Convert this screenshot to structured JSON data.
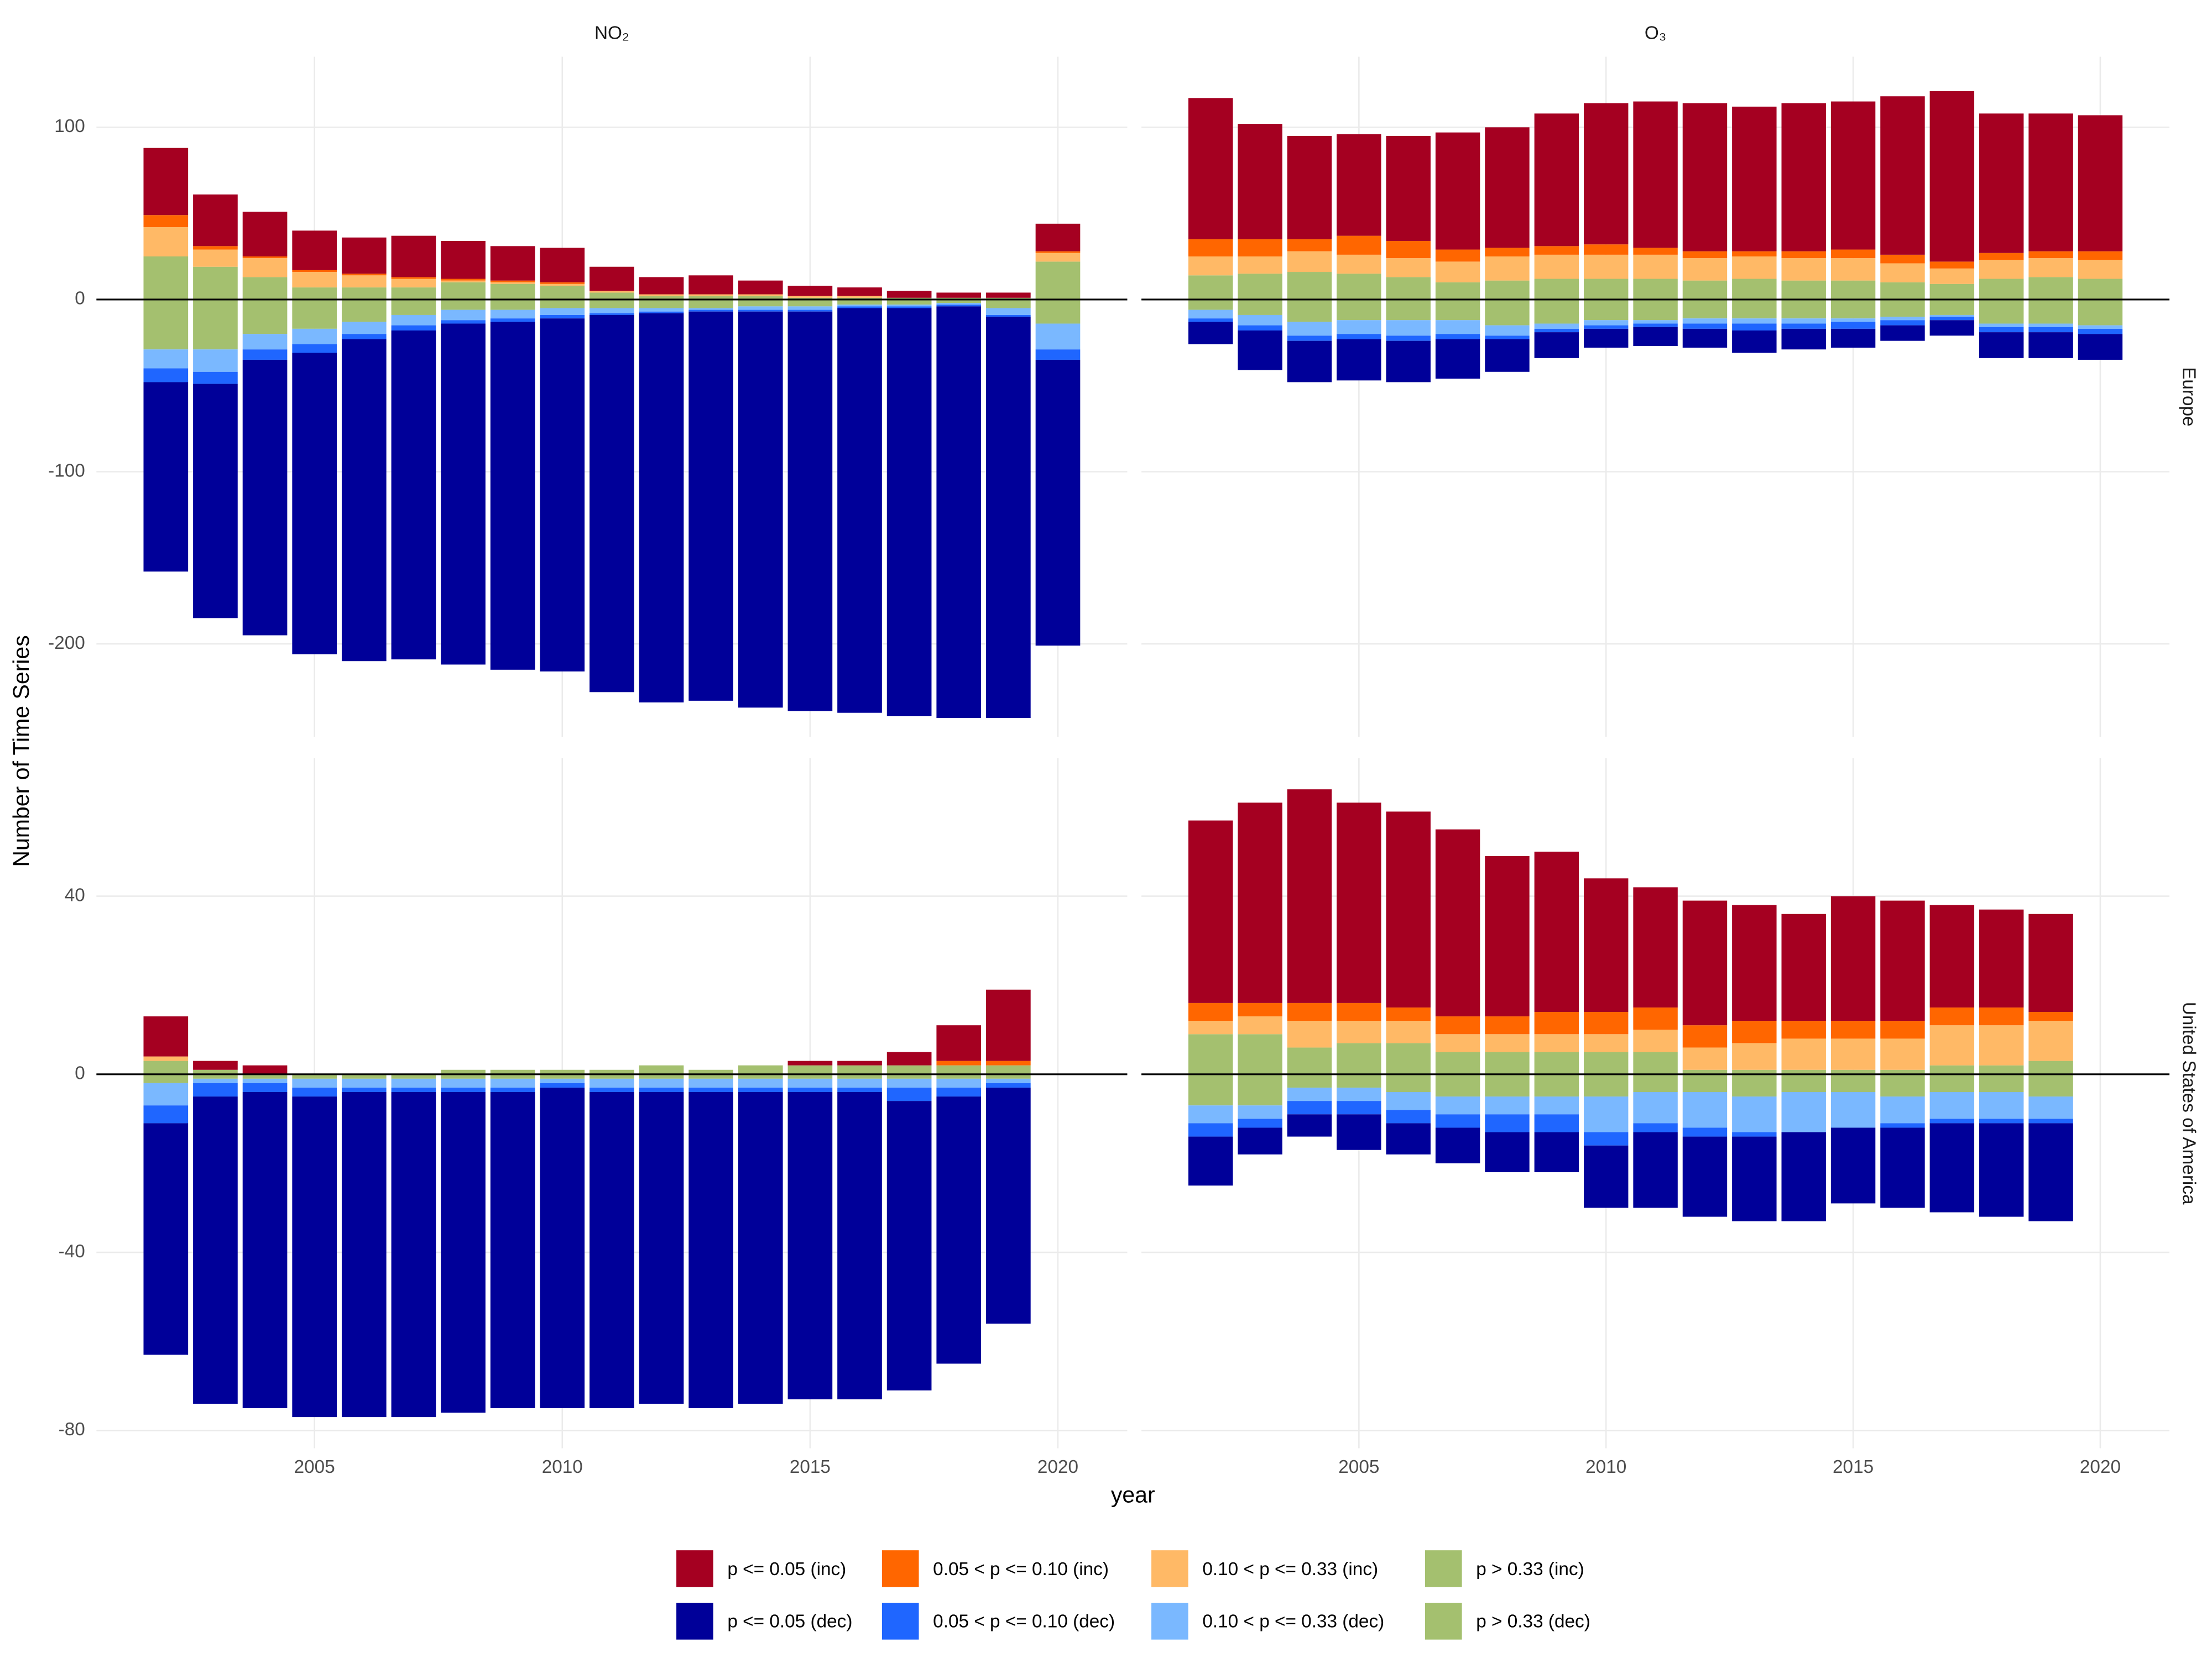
{
  "y_label": "Number of Time Series",
  "x_label": "year",
  "chart_data": [
    {
      "type": "bar",
      "stacked": true,
      "column_label": "NO₂",
      "x": [
        2002,
        2003,
        2004,
        2005,
        2006,
        2007,
        2008,
        2009,
        2010,
        2011,
        2012,
        2013,
        2014,
        2015,
        2016,
        2017,
        2018,
        2019,
        2020
      ],
      "xlim": [
        2000.6,
        2021.4
      ],
      "xticks": [
        2005,
        2010,
        2015,
        2020
      ],
      "ylim": [
        -254,
        141
      ],
      "yticks": [
        -200,
        -100,
        0,
        100
      ],
      "grid": true,
      "series": [
        {
          "name": "p <= 0.05 (inc)",
          "color": "#a50021",
          "values": [
            39,
            30,
            26,
            23,
            21,
            24,
            22,
            20,
            20,
            14,
            10,
            11,
            8,
            6,
            5,
            4,
            3,
            3,
            16
          ]
        },
        {
          "name": "0.05 < p <= 0.10 (inc)",
          "color": "#ff6600",
          "values": [
            7,
            2,
            1,
            1,
            1,
            1,
            1,
            1,
            1,
            0,
            0,
            0,
            0,
            0,
            0,
            0,
            0,
            0,
            1
          ]
        },
        {
          "name": "0.10 < p <= 0.33 (inc)",
          "color": "#ffb966",
          "values": [
            17,
            10,
            11,
            9,
            7,
            5,
            1,
            1,
            1,
            1,
            1,
            1,
            1,
            1,
            1,
            0,
            0,
            0,
            5
          ]
        },
        {
          "name": "p > 0.33 (inc)",
          "color": "#a4c06f",
          "values": [
            25,
            19,
            13,
            7,
            7,
            7,
            10,
            9,
            8,
            4,
            2,
            2,
            2,
            1,
            1,
            1,
            1,
            1,
            22
          ]
        },
        {
          "name": "p <= 0.05 (dec)",
          "color": "#000099",
          "values": [
            -110,
            -136,
            -160,
            -175,
            -187,
            -191,
            -198,
            -202,
            -205,
            -219,
            -226,
            -226,
            -230,
            -232,
            -235,
            -237,
            -239,
            -233,
            -166
          ]
        },
        {
          "name": "0.05 < p <= 0.10 (dec)",
          "color": "#1f66ff",
          "values": [
            -8,
            -7,
            -6,
            -5,
            -3,
            -3,
            -2,
            -2,
            -2,
            -1,
            -1,
            -1,
            -1,
            -1,
            -1,
            -1,
            -1,
            -1,
            -6
          ]
        },
        {
          "name": "0.10 < p <= 0.33 (dec)",
          "color": "#7ab8ff",
          "values": [
            -11,
            -13,
            -9,
            -9,
            -7,
            -6,
            -6,
            -5,
            -4,
            -3,
            -2,
            -1,
            -2,
            -2,
            -1,
            -1,
            -1,
            -4,
            -15
          ]
        },
        {
          "name": "p > 0.33 (dec)",
          "color": "#a4c06f",
          "values": [
            -29,
            -29,
            -20,
            -17,
            -13,
            -9,
            -6,
            -6,
            -5,
            -5,
            -5,
            -5,
            -4,
            -4,
            -3,
            -3,
            -2,
            -5,
            -14
          ]
        }
      ]
    },
    {
      "type": "bar",
      "stacked": true,
      "column_label": "O₃",
      "row_label": "Europe",
      "x": [
        2002,
        2003,
        2004,
        2005,
        2006,
        2007,
        2008,
        2009,
        2010,
        2011,
        2012,
        2013,
        2014,
        2015,
        2016,
        2017,
        2018,
        2019,
        2020
      ],
      "xlim": [
        2000.6,
        2021.4
      ],
      "xticks": [
        2005,
        2010,
        2015,
        2020
      ],
      "ylim": [
        -254,
        141
      ],
      "yticks": [
        -200,
        -100,
        0,
        100
      ],
      "grid": true,
      "series": [
        {
          "color": "#a50021",
          "values": [
            82,
            67,
            60,
            59,
            61,
            68,
            70,
            77,
            82,
            85,
            86,
            84,
            86,
            86,
            92,
            99,
            81,
            80,
            79
          ]
        },
        {
          "color": "#ff6600",
          "values": [
            10,
            10,
            7,
            11,
            10,
            7,
            5,
            5,
            6,
            4,
            4,
            3,
            4,
            5,
            5,
            4,
            4,
            4,
            5
          ]
        },
        {
          "color": "#ffb966",
          "values": [
            11,
            10,
            12,
            11,
            11,
            12,
            14,
            14,
            14,
            14,
            13,
            13,
            13,
            13,
            11,
            9,
            11,
            11,
            11
          ]
        },
        {
          "color": "#a4c06f",
          "values": [
            14,
            15,
            16,
            15,
            13,
            10,
            11,
            12,
            12,
            12,
            11,
            12,
            11,
            11,
            10,
            9,
            12,
            13,
            12
          ]
        },
        {
          "color": "#000099",
          "values": [
            -13,
            -23,
            -24,
            -24,
            -24,
            -23,
            -19,
            -15,
            -11,
            -11,
            -11,
            -13,
            -12,
            -11,
            -9,
            -9,
            -15,
            -15,
            -15
          ]
        },
        {
          "color": "#1f66ff",
          "values": [
            -2,
            -3,
            -3,
            -3,
            -3,
            -3,
            -2,
            -2,
            -2,
            -2,
            -3,
            -4,
            -3,
            -4,
            -3,
            -2,
            -3,
            -3,
            -3
          ]
        },
        {
          "color": "#7ab8ff",
          "values": [
            -5,
            -6,
            -8,
            -8,
            -9,
            -8,
            -6,
            -3,
            -3,
            -2,
            -3,
            -3,
            -3,
            -2,
            -2,
            -1,
            -2,
            -2,
            -2
          ]
        },
        {
          "color": "#a4c06f",
          "values": [
            -6,
            -9,
            -13,
            -12,
            -12,
            -12,
            -15,
            -14,
            -12,
            -12,
            -11,
            -11,
            -11,
            -11,
            -10,
            -9,
            -14,
            -14,
            -15
          ]
        }
      ]
    },
    {
      "type": "bar",
      "stacked": true,
      "x": [
        2002,
        2003,
        2004,
        2005,
        2006,
        2007,
        2008,
        2009,
        2010,
        2011,
        2012,
        2013,
        2014,
        2015,
        2016,
        2017,
        2018,
        2019
      ],
      "xlim": [
        2000.6,
        2021.4
      ],
      "xticks": [
        2005,
        2010,
        2015,
        2020
      ],
      "ylim": [
        -84,
        71
      ],
      "yticks": [
        -80,
        -40,
        0,
        40
      ],
      "grid": true,
      "series": [
        {
          "color": "#a50021",
          "values": [
            9,
            2,
            2,
            0,
            0,
            0,
            0,
            0,
            0,
            0,
            0,
            0,
            0,
            1,
            1,
            3,
            8,
            16
          ]
        },
        {
          "color": "#ff6600",
          "values": [
            0,
            0,
            0,
            0,
            0,
            0,
            0,
            0,
            0,
            0,
            0,
            0,
            0,
            0,
            0,
            0,
            1,
            1
          ]
        },
        {
          "color": "#ffb966",
          "values": [
            1,
            0,
            0,
            0,
            0,
            0,
            0,
            0,
            0,
            0,
            0,
            0,
            0,
            0,
            0,
            0,
            0,
            0
          ]
        },
        {
          "color": "#a4c06f",
          "values": [
            3,
            1,
            0,
            0,
            0,
            0,
            1,
            1,
            1,
            1,
            2,
            1,
            2,
            2,
            2,
            2,
            2,
            2
          ]
        },
        {
          "color": "#000099",
          "values": [
            -52,
            -69,
            -71,
            -72,
            -73,
            -73,
            -72,
            -71,
            -72,
            -71,
            -70,
            -71,
            -70,
            -69,
            -69,
            -65,
            -60,
            -53
          ]
        },
        {
          "color": "#1f66ff",
          "values": [
            -4,
            -3,
            -2,
            -2,
            -1,
            -1,
            -1,
            -1,
            -1,
            -1,
            -1,
            -1,
            -1,
            -1,
            -1,
            -3,
            -2,
            -1
          ]
        },
        {
          "color": "#7ab8ff",
          "values": [
            -5,
            -1,
            -1,
            -2,
            -2,
            -2,
            -2,
            -2,
            -1,
            -2,
            -2,
            -2,
            -2,
            -2,
            -2,
            -2,
            -2,
            -1
          ]
        },
        {
          "color": "#a4c06f",
          "values": [
            -2,
            -1,
            -1,
            -1,
            -1,
            -1,
            -1,
            -1,
            -1,
            -1,
            -1,
            -1,
            -1,
            -1,
            -1,
            -1,
            -1,
            -1
          ]
        }
      ]
    },
    {
      "type": "bar",
      "stacked": true,
      "row_label": "United States of America",
      "x": [
        2002,
        2003,
        2004,
        2005,
        2006,
        2007,
        2008,
        2009,
        2010,
        2011,
        2012,
        2013,
        2014,
        2015,
        2016,
        2017,
        2018,
        2019
      ],
      "xlim": [
        2000.6,
        2021.4
      ],
      "xticks": [
        2005,
        2010,
        2015,
        2020
      ],
      "ylim": [
        -84,
        71
      ],
      "yticks": [
        -80,
        -40,
        0,
        40
      ],
      "grid": true,
      "series": [
        {
          "color": "#a50021",
          "values": [
            41,
            45,
            48,
            45,
            44,
            42,
            36,
            36,
            30,
            27,
            28,
            26,
            24,
            28,
            27,
            23,
            22,
            22
          ]
        },
        {
          "color": "#ff6600",
          "values": [
            4,
            3,
            4,
            4,
            3,
            4,
            4,
            5,
            5,
            5,
            5,
            5,
            4,
            4,
            4,
            4,
            4,
            2
          ]
        },
        {
          "color": "#ffb966",
          "values": [
            3,
            4,
            6,
            5,
            5,
            4,
            4,
            4,
            4,
            5,
            5,
            6,
            7,
            7,
            7,
            9,
            9,
            9
          ]
        },
        {
          "color": "#a4c06f",
          "values": [
            9,
            9,
            6,
            7,
            7,
            5,
            5,
            5,
            5,
            5,
            1,
            1,
            1,
            1,
            1,
            2,
            2,
            3
          ]
        },
        {
          "color": "#000099",
          "values": [
            -11,
            -6,
            -5,
            -8,
            -7,
            -8,
            -9,
            -9,
            -14,
            -17,
            -18,
            -19,
            -20,
            -17,
            -18,
            -20,
            -21,
            -22
          ]
        },
        {
          "color": "#1f66ff",
          "values": [
            -3,
            -2,
            -3,
            -3,
            -3,
            -3,
            -4,
            -4,
            -3,
            -2,
            -2,
            -1,
            0,
            0,
            -1,
            -1,
            -1,
            -1
          ]
        },
        {
          "color": "#7ab8ff",
          "values": [
            -4,
            -3,
            -3,
            -3,
            -4,
            -4,
            -4,
            -4,
            -8,
            -7,
            -8,
            -8,
            -9,
            -8,
            -6,
            -6,
            -6,
            -5
          ]
        },
        {
          "color": "#a4c06f",
          "values": [
            -7,
            -7,
            -3,
            -3,
            -4,
            -5,
            -5,
            -5,
            -5,
            -4,
            -4,
            -5,
            -4,
            -4,
            -5,
            -4,
            -4,
            -5
          ]
        }
      ]
    }
  ]
}
